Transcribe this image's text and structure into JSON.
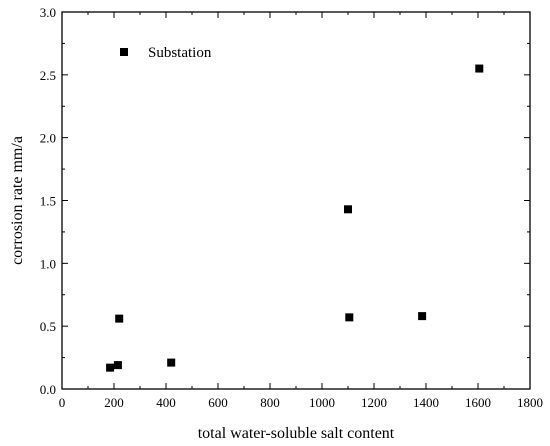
{
  "chart_data": {
    "type": "scatter",
    "xlabel": "total water-soluble salt content",
    "ylabel": "corrosion rate mm/a",
    "xlim": [
      0,
      1800
    ],
    "ylim": [
      0,
      3.0
    ],
    "x_ticks": [
      "0",
      "200",
      "400",
      "600",
      "800",
      "1000",
      "1200",
      "1400",
      "1600",
      "1800"
    ],
    "y_ticks": [
      "0.0",
      "0.5",
      "1.0",
      "1.5",
      "2.0",
      "2.5",
      "3.0"
    ],
    "x_tick_values": [
      0,
      200,
      400,
      600,
      800,
      1000,
      1200,
      1400,
      1600,
      1800
    ],
    "y_tick_values": [
      0,
      0.5,
      1.0,
      1.5,
      2.0,
      2.5,
      3.0
    ],
    "grid": false,
    "legend_position": "top-left",
    "series": [
      {
        "name": "Substation",
        "marker": "square",
        "color": "#000000",
        "points": [
          {
            "x": 185,
            "y": 0.17
          },
          {
            "x": 215,
            "y": 0.19
          },
          {
            "x": 220,
            "y": 0.56
          },
          {
            "x": 420,
            "y": 0.21
          },
          {
            "x": 1100,
            "y": 1.43
          },
          {
            "x": 1105,
            "y": 0.57
          },
          {
            "x": 1385,
            "y": 0.58
          },
          {
            "x": 1605,
            "y": 2.55
          }
        ]
      }
    ]
  }
}
